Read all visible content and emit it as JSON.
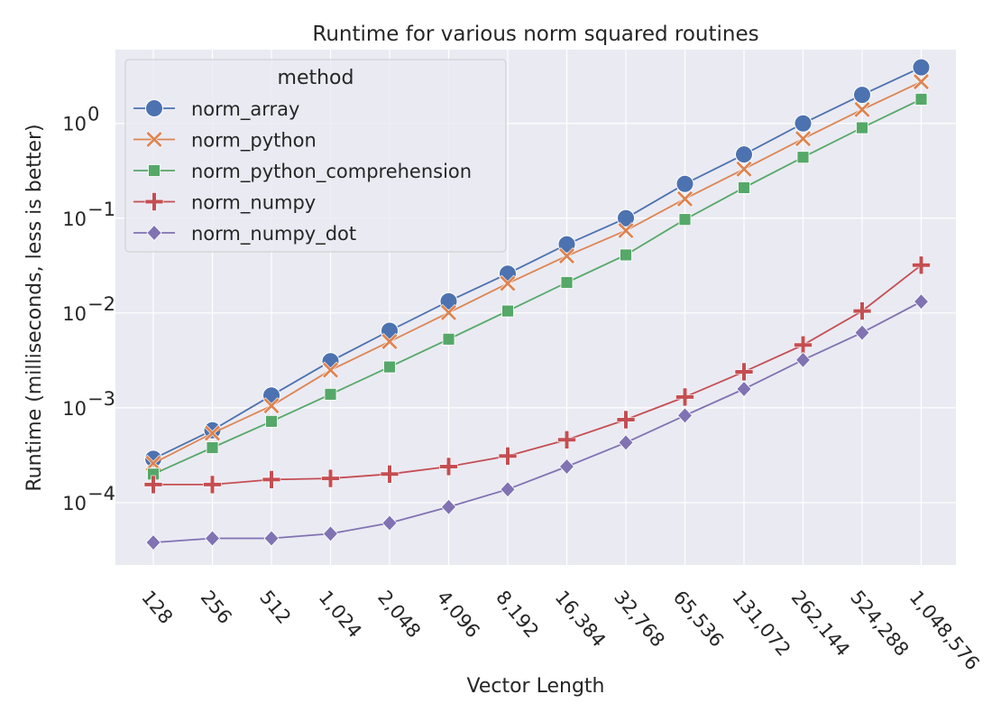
{
  "chart_data": {
    "type": "line",
    "title": "Runtime for various norm squared routines",
    "xlabel": "Vector Length",
    "ylabel": "Runtime (milliseconds, less is better)",
    "yscale": "log",
    "ylim": [
      2.2e-05,
      6
    ],
    "yticks": [
      {
        "value": 0.0001,
        "base": "10",
        "exp": "−4"
      },
      {
        "value": 0.001,
        "base": "10",
        "exp": "−3"
      },
      {
        "value": 0.01,
        "base": "10",
        "exp": "−2"
      },
      {
        "value": 0.1,
        "base": "10",
        "exp": "−1"
      },
      {
        "value": 1,
        "base": "10",
        "exp": "0"
      }
    ],
    "categories": [
      "128",
      "256",
      "512",
      "1,024",
      "2,048",
      "4,096",
      "8,192",
      "16,384",
      "32,768",
      "65,536",
      "131,072",
      "262,144",
      "524,288",
      "1,048,576"
    ],
    "legend": {
      "title": "method",
      "position": "upper-left"
    },
    "grid": true,
    "series": [
      {
        "name": "norm_array",
        "color": "#4c72b0",
        "marker": "circle",
        "values": [
          0.00029,
          0.00058,
          0.00135,
          0.0031,
          0.0065,
          0.0133,
          0.026,
          0.053,
          0.1,
          0.23,
          0.47,
          1.0,
          2.0,
          3.9
        ]
      },
      {
        "name": "norm_python",
        "color": "#dd8452",
        "marker": "x",
        "values": [
          0.00026,
          0.00054,
          0.00105,
          0.0025,
          0.005,
          0.0101,
          0.0205,
          0.04,
          0.074,
          0.16,
          0.33,
          0.69,
          1.4,
          2.75
        ]
      },
      {
        "name": "norm_python_comprehension",
        "color": "#55a868",
        "marker": "square",
        "values": [
          0.0002,
          0.00038,
          0.00072,
          0.00139,
          0.0027,
          0.0053,
          0.0105,
          0.021,
          0.041,
          0.097,
          0.21,
          0.44,
          0.9,
          1.8
        ]
      },
      {
        "name": "norm_numpy",
        "color": "#c44e52",
        "marker": "plus",
        "values": [
          0.000155,
          0.000155,
          0.000175,
          0.00018,
          0.0002,
          0.00024,
          0.00031,
          0.00046,
          0.00075,
          0.0013,
          0.0024,
          0.0046,
          0.0105,
          0.032
        ]
      },
      {
        "name": "norm_numpy_dot",
        "color": "#8172b3",
        "marker": "diamond",
        "values": [
          3.8e-05,
          4.2e-05,
          4.2e-05,
          4.7e-05,
          6.1e-05,
          9e-05,
          0.000138,
          0.00024,
          0.00043,
          0.00083,
          0.00158,
          0.0032,
          0.0062,
          0.0132
        ]
      }
    ]
  }
}
